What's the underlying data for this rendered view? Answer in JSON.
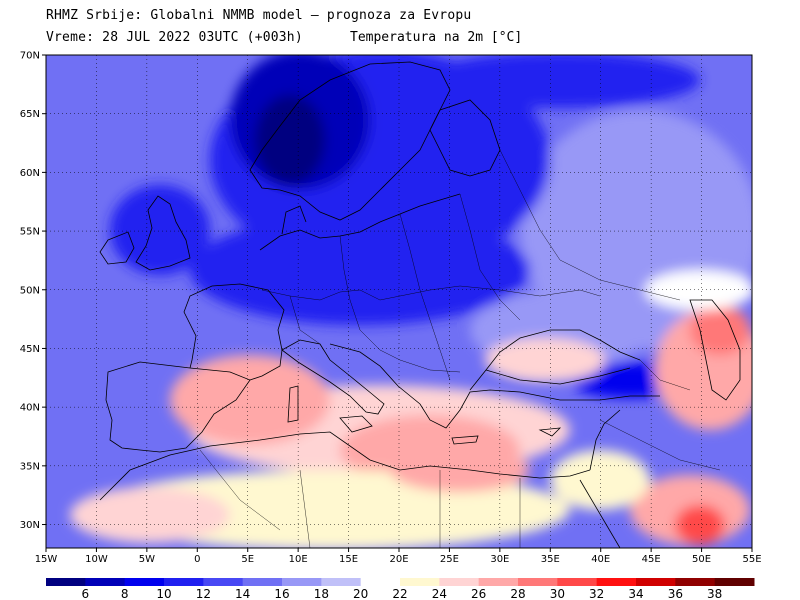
{
  "header": {
    "line1": "RHMZ Srbije: Globalni NMMB model – prognoza za Evropu",
    "line2_left": "Vreme: 28 JUL 2022 03UTC (+003h)",
    "line2_right": "Temperatura na 2m [°C]"
  },
  "map": {
    "lon_range": [
      -15,
      55
    ],
    "lat_range": [
      28,
      70
    ],
    "lat_ticks": [
      "30N",
      "35N",
      "40N",
      "45N",
      "50N",
      "55N",
      "60N",
      "65N",
      "70N"
    ],
    "lat_tick_values": [
      30,
      35,
      40,
      45,
      50,
      55,
      60,
      65,
      70
    ],
    "lon_ticks": [
      "15W",
      "10W",
      "5W",
      "0",
      "5E",
      "10E",
      "15E",
      "20E",
      "25E",
      "30E",
      "35E",
      "40E",
      "45E",
      "50E",
      "55E"
    ],
    "lon_tick_values": [
      -15,
      -10,
      -5,
      0,
      5,
      10,
      15,
      20,
      25,
      30,
      35,
      40,
      45,
      50,
      55
    ],
    "grid": "dotted"
  },
  "colorbar": {
    "labels": [
      "6",
      "8",
      "10",
      "12",
      "14",
      "16",
      "18",
      "20",
      "22",
      "24",
      "26",
      "28",
      "30",
      "32",
      "34",
      "36",
      "38"
    ],
    "colors": [
      "#000080",
      "#0000b8",
      "#0000ee",
      "#2020f0",
      "#4848f4",
      "#7070f4",
      "#9898f6",
      "#c0c0f8",
      "#ffffff",
      "#fff8d0",
      "#ffd4d4",
      "#ffa8a8",
      "#ff7878",
      "#ff4848",
      "#ff1010",
      "#d00000",
      "#900000",
      "#600000"
    ]
  },
  "fields": {
    "water": "#7070f4",
    "cold_north": "#0000ee",
    "very_cold": "#000080",
    "warm": "#ffa8a8",
    "hot": "#ff7878",
    "mild": "#fff8d0",
    "cool": "#9898f6"
  }
}
